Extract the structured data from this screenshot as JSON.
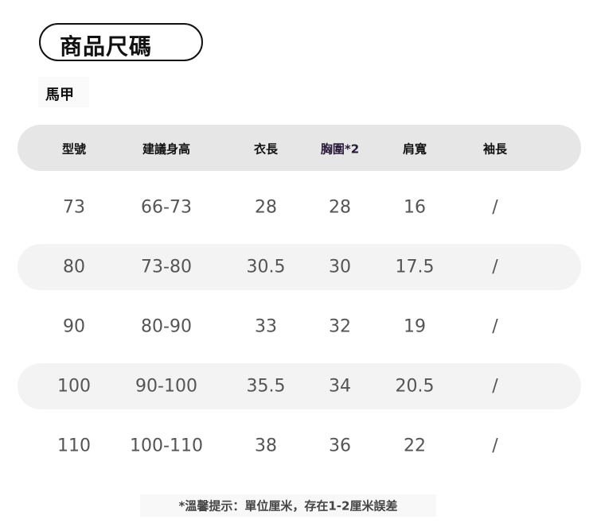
{
  "title": "商品尺碼",
  "subtitle": "馬甲",
  "table": {
    "headers": [
      "型號",
      "建議身高",
      "衣長",
      "胸圍*2",
      "肩寬",
      "袖長"
    ],
    "rows": [
      [
        "73",
        "66-73",
        "28",
        "28",
        "16",
        "/"
      ],
      [
        "80",
        "73-80",
        "30.5",
        "30",
        "17.5",
        "/"
      ],
      [
        "90",
        "80-90",
        "33",
        "32",
        "19",
        "/"
      ],
      [
        "100",
        "90-100",
        "35.5",
        "34",
        "20.5",
        "/"
      ],
      [
        "110",
        "100-110",
        "38",
        "36",
        "22",
        "/"
      ]
    ]
  },
  "colors": {
    "header_bg": "#e6e6e6",
    "alt_row_bg": "#f3f3f3",
    "chest_header": "#2a1a3a"
  },
  "note": "*溫馨提示：單位厘米，存在1-2厘米誤差"
}
